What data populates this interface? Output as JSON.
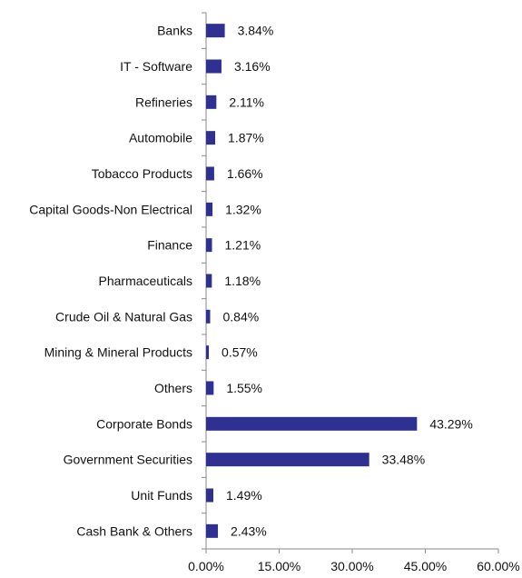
{
  "chart_data": {
    "type": "bar",
    "orientation": "horizontal",
    "categories": [
      "Banks",
      "IT - Software",
      "Refineries",
      "Automobile",
      "Tobacco Products",
      "Capital Goods-Non Electrical",
      "Finance",
      "Pharmaceuticals",
      "Crude Oil & Natural Gas",
      "Mining & Mineral Products",
      "Others",
      "Corporate Bonds",
      "Government Securities",
      "Unit Funds",
      "Cash Bank & Others"
    ],
    "values": [
      3.84,
      3.16,
      2.11,
      1.87,
      1.66,
      1.32,
      1.21,
      1.18,
      0.84,
      0.57,
      1.55,
      43.29,
      33.48,
      1.49,
      2.43
    ],
    "value_labels": [
      "3.84%",
      "3.16%",
      "2.11%",
      "1.87%",
      "1.66%",
      "1.32%",
      "1.21%",
      "1.18%",
      "0.84%",
      "0.57%",
      "1.55%",
      "43.29%",
      "33.48%",
      "1.49%",
      "2.43%"
    ],
    "xlim": [
      0,
      60
    ],
    "xticks": [
      0,
      15,
      30,
      45,
      60
    ],
    "xtick_labels": [
      "0.00%",
      "15.00%",
      "30.00%",
      "45.00%",
      "60.00%"
    ],
    "title": "",
    "xlabel": "",
    "ylabel": "",
    "grid": false,
    "legend": "none",
    "colors": {
      "bar": "#2E3192",
      "axis": "#8a8a8a",
      "text": "#111111"
    }
  }
}
